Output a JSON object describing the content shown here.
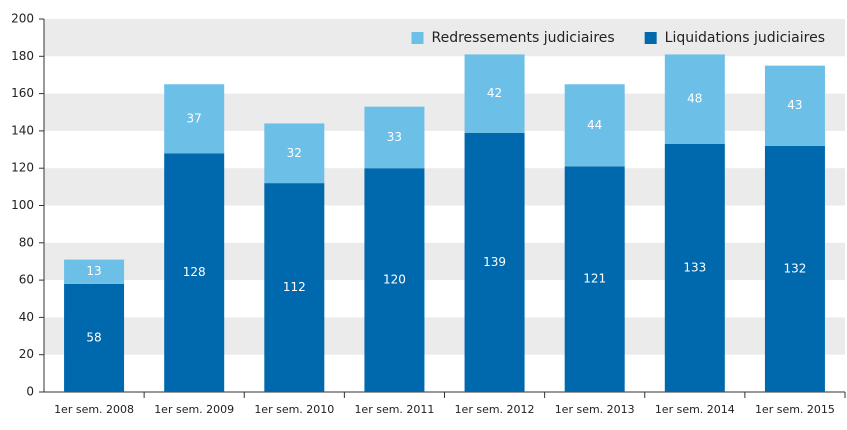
{
  "chart_data": {
    "type": "stacked_bar",
    "categories": [
      "1er sem. 2008",
      "1er sem. 2009",
      "1er sem. 2010",
      "1er sem. 2011",
      "1er sem. 2012",
      "1er sem. 2013",
      "1er sem. 2014",
      "1er sem. 2015"
    ],
    "series": [
      {
        "name": "Liquidations judiciaires",
        "color": "#0069ad",
        "values": [
          58,
          128,
          112,
          120,
          139,
          121,
          133,
          132
        ]
      },
      {
        "name": "Redressements judiciaires",
        "color": "#6cbfe6",
        "values": [
          13,
          37,
          32,
          33,
          42,
          44,
          48,
          43
        ]
      }
    ],
    "ylim": [
      0,
      200
    ],
    "yticks": [
      0,
      20,
      40,
      60,
      80,
      100,
      120,
      140,
      160,
      180,
      200
    ],
    "grid": true,
    "legend": "top-right"
  }
}
